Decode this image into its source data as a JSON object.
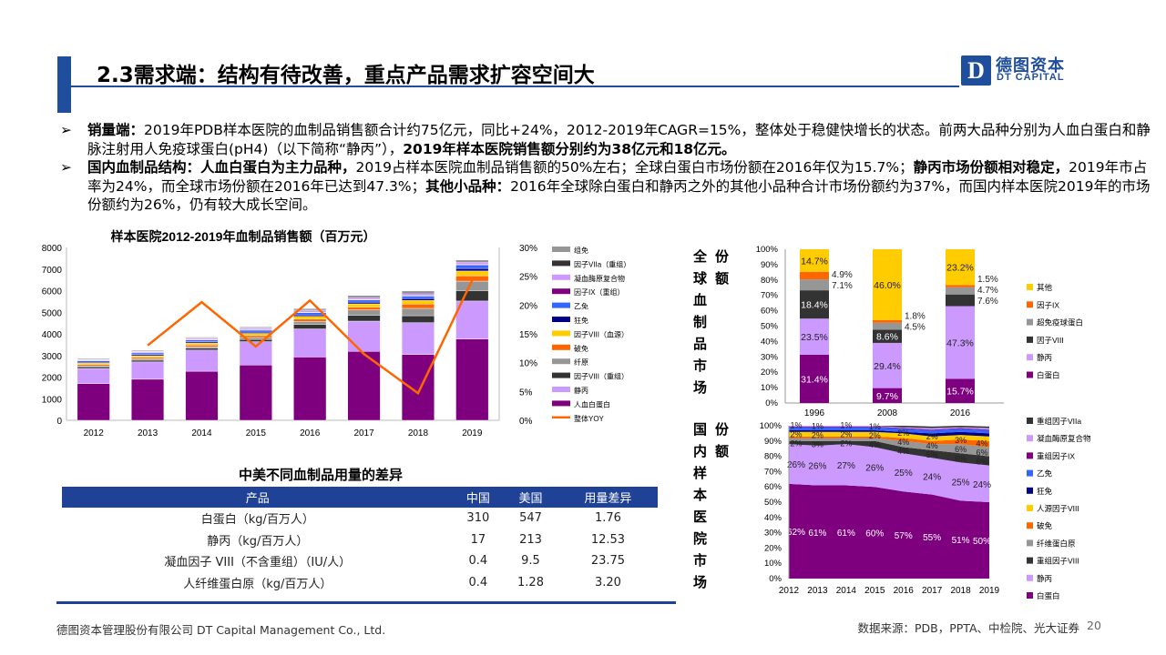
{
  "header": {
    "title": "2.3需求端：结构有待改善，重点产品需求扩容空间大",
    "logo": {
      "mark": "D",
      "cn": "德图资本",
      "en": "DT CAPITAL"
    }
  },
  "bullets": [
    {
      "icon": "arrow-bullet-icon",
      "segments": [
        {
          "text": "销量端：",
          "bold": true
        },
        {
          "text": "2019年PDB样本医院的血制品销售额合计约75亿元，同比+24%，2012-2019年CAGR=15%，整体处于稳健快增长的状态。前两大品种分别为人血白蛋白和静脉注射用人免疫球蛋白(pH4)（以下简称“静丙”），",
          "bold": false
        },
        {
          "text": "2019年样本医院销售额分别约为38亿元和18亿元。",
          "bold": true
        }
      ]
    },
    {
      "icon": "arrow-bullet-icon",
      "segments": [
        {
          "text": "国内血制品结构：人血白蛋白为主力品种，",
          "bold": true
        },
        {
          "text": "2019占样本医院血制品销售额的50%左右；全球白蛋白市场份额在2016年仅为15.7%；",
          "bold": false
        },
        {
          "text": "静丙市场份额相对稳定，",
          "bold": true
        },
        {
          "text": "2019年市占率为24%，而全球市场份额在2016年已达到47.3%；",
          "bold": false
        },
        {
          "text": "其他小品种：",
          "bold": true
        },
        {
          "text": "2016年全球除白蛋白和静丙之外的其他小品种合计市场份额约为37%，而国内样本医院2019年的市场份额约为26%，仍有较大成长空间。",
          "bold": false
        }
      ]
    }
  ],
  "chart_data": [
    {
      "type": "bar",
      "stacked": true,
      "title": "样本医院2012-2019年血制品销售额（百万元）",
      "categories": [
        "2012",
        "2013",
        "2014",
        "2015",
        "2016",
        "2017",
        "2018",
        "2019"
      ],
      "ylim": [
        0,
        8000
      ],
      "yticks": [
        "0",
        "1000",
        "2000",
        "3000",
        "4000",
        "5000",
        "6000",
        "7000",
        "8000"
      ],
      "y2lim": [
        0,
        30
      ],
      "y2ticks": [
        "0%",
        "5%",
        "10%",
        "15%",
        "20%",
        "25%",
        "30%"
      ],
      "legend_position": "right",
      "series": [
        {
          "name": "人血白蛋白",
          "color": "#7f007f",
          "values": [
            1700,
            1900,
            2270,
            2560,
            2930,
            3190,
            3040,
            3760
          ]
        },
        {
          "name": "静丙",
          "color": "#cc99ff",
          "values": [
            700,
            800,
            980,
            1080,
            1300,
            1400,
            1480,
            1760
          ]
        },
        {
          "name": "因子VIII（重组）",
          "color": "#333333",
          "values": [
            80,
            80,
            90,
            100,
            200,
            270,
            320,
            480
          ]
        },
        {
          "name": "纤原",
          "color": "#969696",
          "values": [
            40,
            60,
            70,
            90,
            150,
            250,
            340,
            440
          ]
        },
        {
          "name": "破免",
          "color": "#ff6600",
          "values": [
            60,
            70,
            80,
            90,
            110,
            130,
            200,
            250
          ]
        },
        {
          "name": "因子VIII（血源）",
          "color": "#ffcc00",
          "values": [
            60,
            80,
            90,
            100,
            120,
            150,
            170,
            220
          ]
        },
        {
          "name": "狂免",
          "color": "#000080",
          "values": [
            40,
            50,
            60,
            60,
            70,
            80,
            90,
            120
          ]
        },
        {
          "name": "乙免",
          "color": "#3366ff",
          "values": [
            70,
            80,
            80,
            90,
            100,
            100,
            110,
            150
          ]
        },
        {
          "name": "因子IX（重组）",
          "color": "#800080",
          "values": [
            10,
            10,
            10,
            10,
            20,
            20,
            20,
            30
          ]
        },
        {
          "name": "凝血酶原复合物",
          "color": "#cc99ff",
          "values": [
            40,
            50,
            60,
            70,
            80,
            80,
            100,
            100
          ]
        },
        {
          "name": "因子VIIa（重组）",
          "color": "#333333",
          "values": [
            10,
            10,
            20,
            20,
            40,
            50,
            60,
            50
          ]
        },
        {
          "name": "组免",
          "color": "#969696",
          "values": [
            40,
            40,
            40,
            50,
            50,
            60,
            60,
            60
          ]
        }
      ],
      "line": {
        "name": "整体YOY",
        "color": "#ff6600",
        "values": [
          null,
          13.0,
          20.5,
          12.8,
          20.8,
          11.5,
          4.7,
          24.3
        ]
      }
    },
    {
      "type": "bar",
      "stacked": true,
      "percent": true,
      "side_label": "全球血制品市场",
      "side_label2": "份额",
      "categories": [
        "1996",
        "2008",
        "2016"
      ],
      "ylim": [
        0,
        100
      ],
      "yticks": [
        "0%",
        "10%",
        "20%",
        "30%",
        "40%",
        "50%",
        "60%",
        "70%",
        "80%",
        "90%",
        "100%"
      ],
      "legend_position": "right",
      "series": [
        {
          "name": "白蛋白",
          "color": "#7f007f",
          "values": [
            31.4,
            9.7,
            15.7
          ],
          "labels": [
            "31.4%",
            "9.7%",
            "15.7%"
          ]
        },
        {
          "name": "静丙",
          "color": "#cc99ff",
          "values": [
            23.5,
            29.4,
            47.3
          ],
          "labels": [
            "23.5%",
            "29.4%",
            "47.3%"
          ]
        },
        {
          "name": "因子VIII",
          "color": "#333333",
          "values": [
            18.4,
            8.6,
            7.6
          ],
          "labels": [
            "18.4%",
            "8.6%",
            "7.6%"
          ]
        },
        {
          "name": "超免疫球蛋白",
          "color": "#969696",
          "values": [
            7.1,
            4.5,
            4.7
          ],
          "labels": [
            "7.1%",
            "4.5%",
            "4.7%"
          ]
        },
        {
          "name": "因子IX",
          "color": "#ff6600",
          "values": [
            4.9,
            1.8,
            1.5
          ],
          "labels": [
            "4.9%",
            "1.8%",
            "1.5%"
          ]
        },
        {
          "name": "其他",
          "color": "#ffcc00",
          "values": [
            14.7,
            46.0,
            23.2
          ],
          "labels": [
            "14.7%",
            "46.0%",
            "23.2%"
          ]
        }
      ]
    },
    {
      "type": "area",
      "stacked": true,
      "percent": true,
      "side_label": "国内样本医院市场",
      "side_label2": "份额",
      "categories": [
        "2012",
        "2013",
        "2014",
        "2015",
        "2016",
        "2017",
        "2018",
        "2019"
      ],
      "ylim": [
        0,
        100
      ],
      "yticks": [
        "0%",
        "10%",
        "20%",
        "30%",
        "40%",
        "50%",
        "60%",
        "70%",
        "80%",
        "90%",
        "100%"
      ],
      "legend_position": "right",
      "series": [
        {
          "name": "白蛋白",
          "color": "#7f007f",
          "values": [
            62,
            61,
            61,
            60,
            57,
            55,
            51,
            50
          ],
          "labels": [
            "62%",
            "61%",
            "61%",
            "60%",
            "57%",
            "55%",
            "51%",
            "50%"
          ]
        },
        {
          "name": "静丙",
          "color": "#cc99ff",
          "values": [
            26,
            26,
            27,
            26,
            25,
            24,
            25,
            24
          ],
          "labels": [
            "26%",
            "26%",
            "27%",
            "26%",
            "25%",
            "24%",
            "25%",
            "24%"
          ]
        },
        {
          "name": "重组因子VIII",
          "color": "#333333",
          "values": [
            2,
            3,
            2,
            4,
            4,
            5,
            6,
            6
          ],
          "labels": [
            "2%",
            "3%",
            "2%",
            "4%",
            "4%",
            "5%",
            "6%",
            "6%"
          ]
        },
        {
          "name": "纤维蛋白原",
          "color": "#969696",
          "values": [
            2,
            2,
            2,
            2,
            4,
            4,
            6,
            6
          ],
          "labels": [
            "2%",
            "2%",
            "2%",
            "2%",
            "4%",
            "4%",
            "6%",
            "6%"
          ]
        },
        {
          "name": "破免",
          "color": "#ff6600",
          "values": [
            1,
            1,
            1,
            1,
            2,
            2,
            3,
            4
          ],
          "labels": [
            "1%",
            "1%",
            "1%",
            "1%",
            "2%",
            "2%",
            "3%",
            "4%"
          ]
        },
        {
          "name": "人源因子VIII",
          "color": "#ffcc00",
          "values": [
            3,
            3,
            3,
            3,
            3,
            3,
            3,
            3
          ]
        },
        {
          "name": "狂免",
          "color": "#000080",
          "values": [
            1,
            1,
            1,
            1,
            1,
            2,
            2,
            2
          ]
        },
        {
          "name": "乙免",
          "color": "#3366ff",
          "values": [
            2,
            2,
            2,
            2,
            2,
            2,
            2,
            2
          ]
        },
        {
          "name": "重组因子IX",
          "color": "#800080",
          "values": [
            0.5,
            0.5,
            0.5,
            0.5,
            0.5,
            0.5,
            0.5,
            0.5
          ]
        },
        {
          "name": "凝血酶原复合物",
          "color": "#cc99ff",
          "values": [
            0.5,
            0.5,
            0.5,
            0.5,
            0.5,
            1,
            0.5,
            1
          ]
        },
        {
          "name": "重组因子VIIa",
          "color": "#333333",
          "values": [
            1,
            1,
            1,
            1,
            1,
            1,
            1,
            1
          ]
        }
      ]
    }
  ],
  "table": {
    "title": "中美不同血制品用量的差异",
    "headers": [
      "产品",
      "中国",
      "美国",
      "用量差异"
    ],
    "rows": [
      [
        "白蛋白（kg/百万人）",
        "310",
        "547",
        "1.76"
      ],
      [
        "静丙（kg/百万人）",
        "17",
        "213",
        "12.53"
      ],
      [
        "凝血因子 VIII（不含重组）（IU/人）",
        "0.4",
        "9.5",
        "23.75"
      ],
      [
        "人纤维蛋白原（kg/百万人）",
        "0.4",
        "1.28",
        "3.20"
      ]
    ]
  },
  "footer": {
    "company": "德图资本管理股份有限公司  DT Capital Management  Co., Ltd.",
    "source": "数据来源：PDB，PPTA、中检院、光大证券",
    "page": "20"
  }
}
